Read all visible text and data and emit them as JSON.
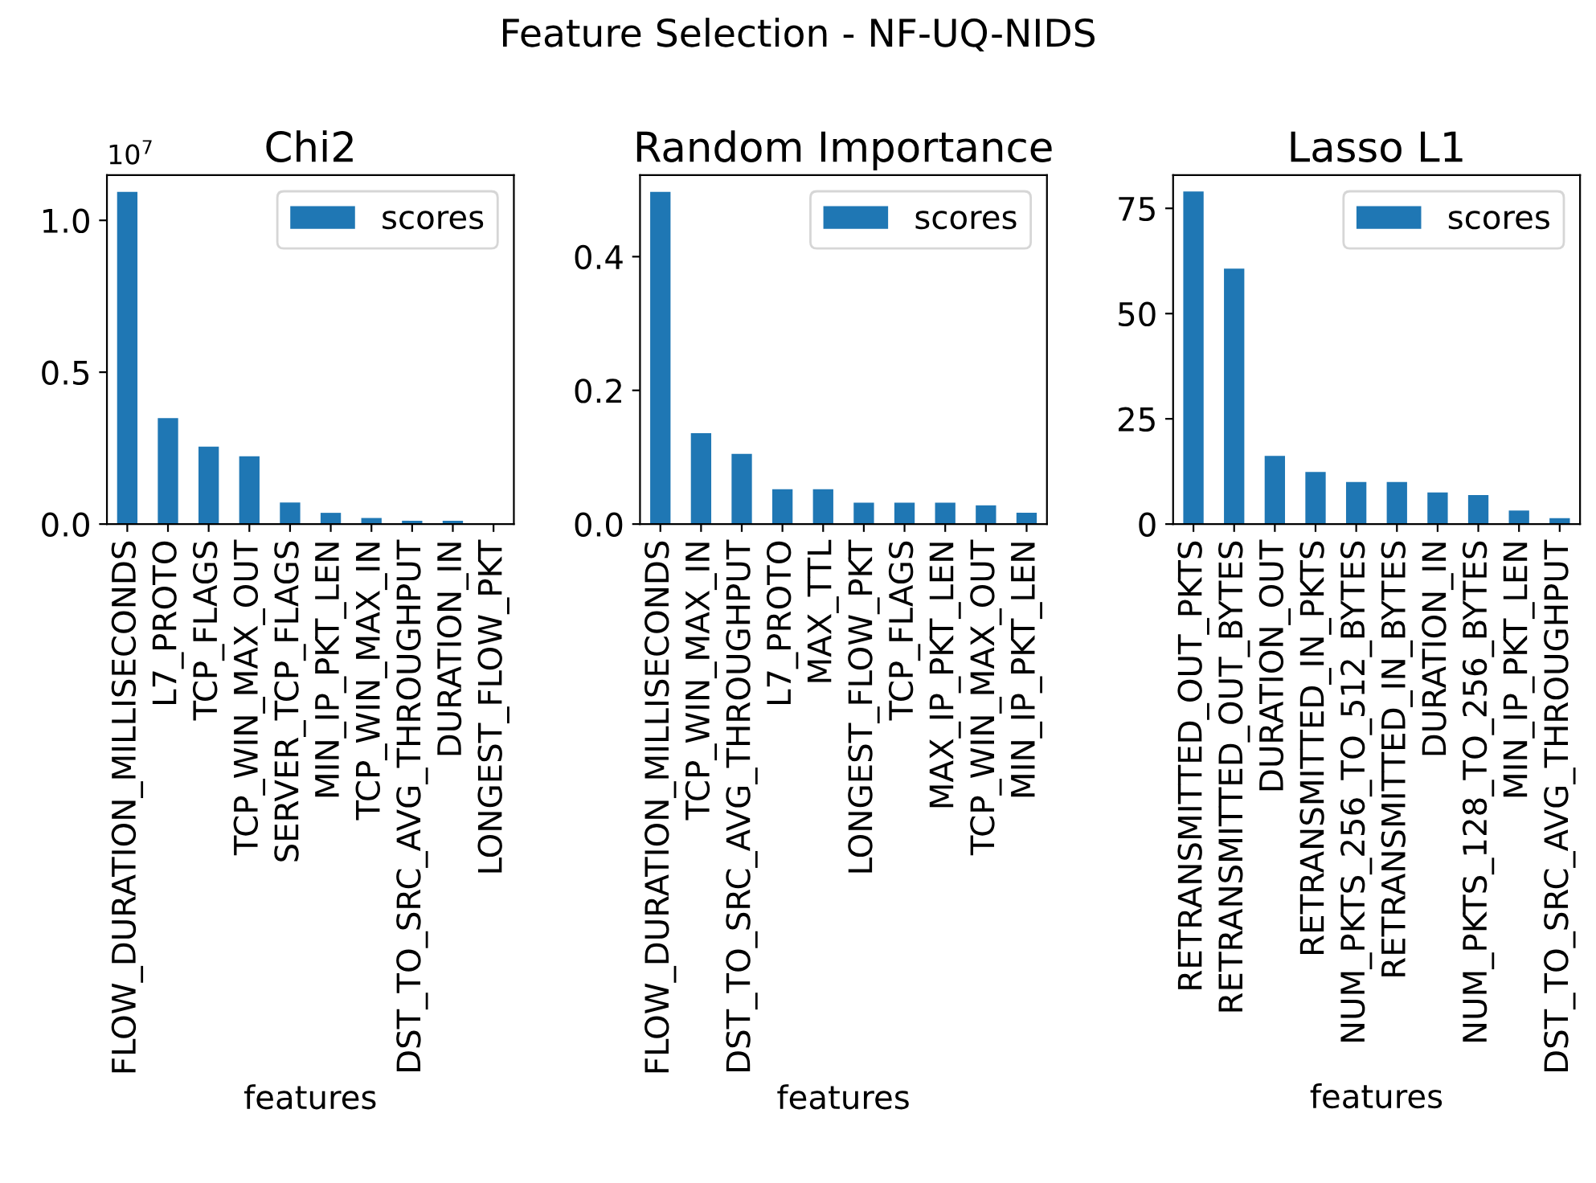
{
  "chart_data": [
    {
      "type": "bar",
      "title": "Chi2",
      "xlabel": "features",
      "categories": [
        "FLOW_DURATION_MILLISECONDS",
        "L7_PROTO",
        "TCP_FLAGS",
        "TCP_WIN_MAX_OUT",
        "SERVER_TCP_FLAGS",
        "MIN_IP_PKT_LEN",
        "TCP_WIN_MAX_IN",
        "DST_TO_SRC_AVG_THROUGHPUT",
        "DURATION_IN",
        "LONGEST_FLOW_PKT"
      ],
      "series": [
        {
          "name": "scores",
          "color": "#1f77b4",
          "values": [
            1.094,
            0.349,
            0.255,
            0.223,
            0.071,
            0.037,
            0.02,
            0.011,
            0.011,
            null
          ]
        }
      ],
      "ylim": [
        0,
        1.149
      ],
      "yticks": [
        {
          "value": 0,
          "label": "0.0"
        },
        {
          "value": 0.5,
          "label": "0.5"
        },
        {
          "value": 1.0,
          "label": "1.0"
        }
      ],
      "annotations": [
        "Feature Selection - NF-UQ-NIDS",
        "10$^{7}$"
      ],
      "legend": "top right",
      "grid": false
    },
    {
      "type": "bar",
      "title": "Random Importance",
      "xlabel": "features",
      "categories": [
        "FLOW_DURATION_MILLISECONDS",
        "TCP_WIN_MAX_IN",
        "DST_TO_SRC_AVG_THROUGHPUT",
        "L7_PROTO",
        "MAX_TTL",
        "LONGEST_FLOW_PKT",
        "TCP_FLAGS",
        "MAX_IP_PKT_LEN",
        "TCP_WIN_MAX_OUT",
        "MIN_IP_PKT_LEN"
      ],
      "series": [
        {
          "name": "scores",
          "color": "#1f77b4",
          "values": [
            0.497,
            0.136,
            0.105,
            0.052,
            0.052,
            0.032,
            0.032,
            0.032,
            0.028,
            0.017
          ]
        }
      ],
      "ylim": [
        0,
        0.522
      ],
      "yticks": [
        {
          "value": 0,
          "label": "0.0"
        },
        {
          "value": 0.2,
          "label": "0.2"
        },
        {
          "value": 0.4,
          "label": "0.4"
        }
      ],
      "legend": "top right",
      "grid": false
    },
    {
      "type": "bar",
      "title": "Lasso L1",
      "xlabel": "features",
      "categories": [
        "RETRANSMITTED_OUT_PKTS",
        "RETRANSMITTED_OUT_BYTES",
        "DURATION_OUT",
        "RETRANSMITTED_IN_PKTS",
        "NUM_PKTS_256_TO_512_BYTES",
        "RETRANSMITTED_IN_BYTES",
        "DURATION_IN",
        "NUM_PKTS_128_TO_256_BYTES",
        "MIN_IP_PKT_LEN",
        "DST_TO_SRC_AVG_THROUGHPUT"
      ],
      "series": [
        {
          "name": "scores",
          "color": "#1f77b4",
          "values": [
            79.0,
            60.7,
            16.2,
            12.4,
            10.0,
            10.0,
            7.5,
            6.9,
            3.2,
            1.4
          ]
        }
      ],
      "ylim": [
        0,
        82.9
      ],
      "yticks": [
        0,
        25,
        50,
        75
      ],
      "legend": "top right",
      "grid": false
    }
  ]
}
